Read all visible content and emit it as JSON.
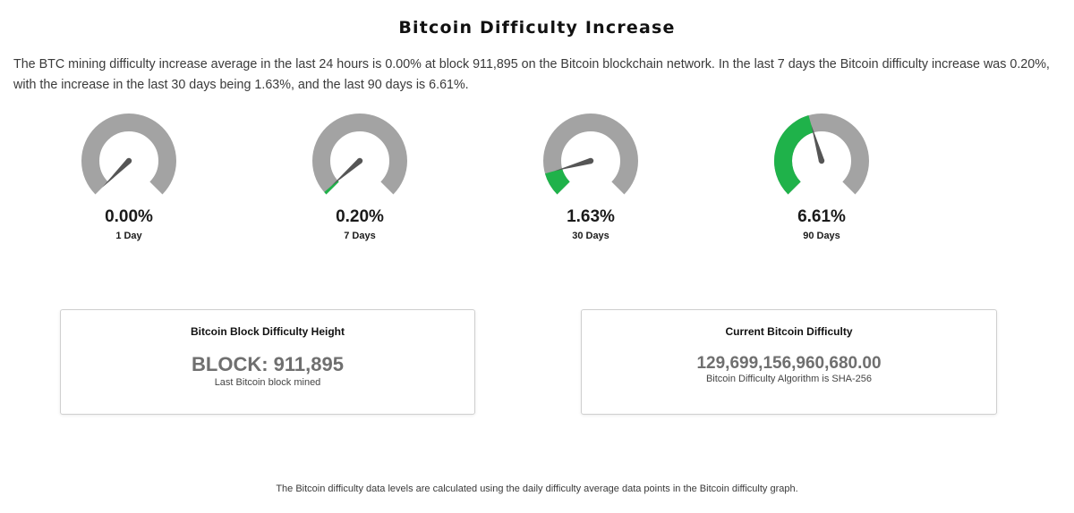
{
  "page": {
    "title": "Bitcoin Difficulty Increase",
    "intro": "The BTC mining difficulty increase average in the last 24 hours is 0.00% at block 911,895 on the Bitcoin blockchain network. In the last 7 days the Bitcoin difficulty increase was 0.20%, with the increase in the last 30 days being 1.63%, and the last 90 days is 6.61%.",
    "footnote": "The Bitcoin difficulty data levels are calculated using the daily difficulty average data points in the Bitcoin difficulty graph."
  },
  "colors": {
    "gauge_track": "#a3a3a3",
    "gauge_fill": "#1fb24a",
    "needle": "#555555"
  },
  "gauges": [
    {
      "value_text": "0.00%",
      "label": "1 Day",
      "percent": 0.0
    },
    {
      "value_text": "0.20%",
      "label": "7 Days",
      "percent": 0.2
    },
    {
      "value_text": "1.63%",
      "label": "30 Days",
      "percent": 1.63
    },
    {
      "value_text": "6.61%",
      "label": "90 Days",
      "percent": 6.61
    }
  ],
  "gauge_scale_max_percent": 15,
  "cards": {
    "height": {
      "title": "Bitcoin Block Difficulty Height",
      "value": "BLOCK: 911,895",
      "subtitle": "Last Bitcoin block mined"
    },
    "difficulty": {
      "title": "Current Bitcoin Difficulty",
      "value": "129,699,156,960,680.00",
      "subtitle": "Bitcoin Difficulty Algorithm is SHA-256"
    }
  }
}
